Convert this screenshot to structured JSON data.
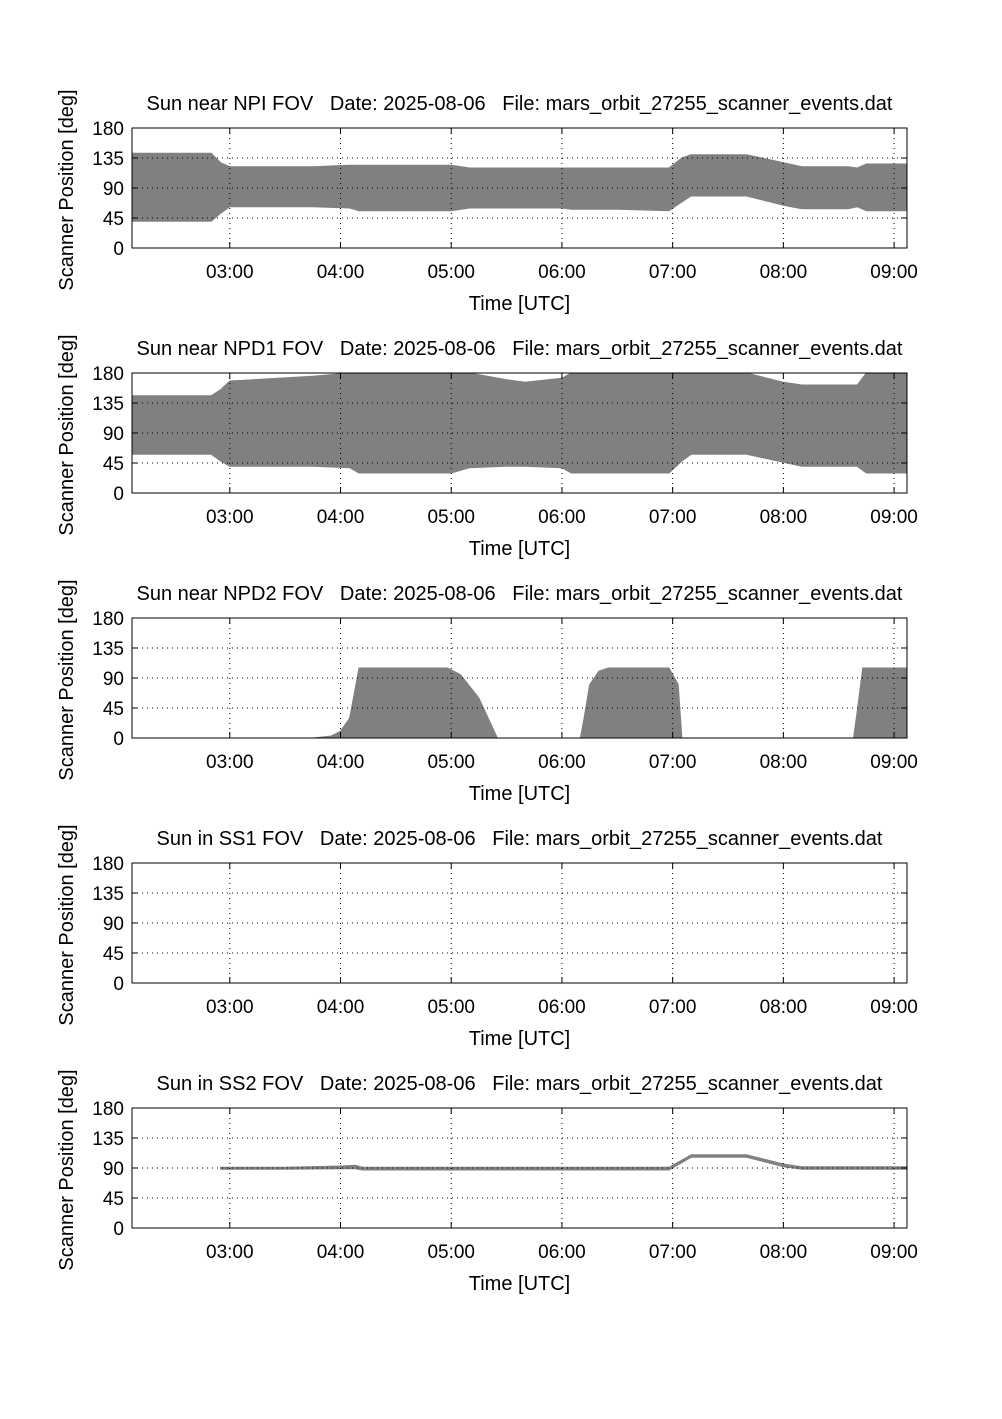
{
  "colors": {
    "fill": "#808080",
    "axes": "#000000",
    "grid": "#000000",
    "background": "#ffffff"
  },
  "chart_data": [
    {
      "type": "area",
      "title": "Sun near NPI FOV   Date: 2025-08-06   File: mars_orbit_27255_scanner_events.dat",
      "xlabel": "Time [UTC]",
      "ylabel": "Scanner Position [deg]",
      "xlim": [
        "02:07",
        "09:07"
      ],
      "ylim": [
        0,
        180
      ],
      "xticks": [
        "03:00",
        "04:00",
        "05:00",
        "06:00",
        "07:00",
        "08:00",
        "09:00"
      ],
      "yticks": [
        0,
        45,
        90,
        135,
        180
      ],
      "grid": true,
      "x": [
        "02:07",
        "02:50",
        "02:55",
        "03:00",
        "03:45",
        "04:05",
        "04:10",
        "05:00",
        "05:10",
        "06:00",
        "06:05",
        "06:30",
        "06:58",
        "07:05",
        "07:10",
        "07:40",
        "08:00",
        "08:10",
        "08:20",
        "08:35",
        "08:40",
        "08:45",
        "09:07"
      ],
      "series": [
        {
          "low": [
            40,
            40,
            52,
            62,
            62,
            60,
            56,
            56,
            60,
            60,
            58,
            58,
            56,
            69,
            78,
            78,
            64,
            59,
            59,
            59,
            62,
            56,
            56
          ],
          "high": [
            142,
            142,
            128,
            122,
            122,
            124,
            124,
            124,
            120,
            120,
            120,
            120,
            120,
            135,
            140,
            140,
            128,
            122,
            122,
            122,
            120,
            126,
            126
          ]
        }
      ]
    },
    {
      "type": "area",
      "title": "Sun near NPD1 FOV   Date: 2025-08-06   File: mars_orbit_27255_scanner_events.dat",
      "xlabel": "Time [UTC]",
      "ylabel": "Scanner Position [deg]",
      "xlim": [
        "02:07",
        "09:07"
      ],
      "ylim": [
        0,
        180
      ],
      "xticks": [
        "03:00",
        "04:00",
        "05:00",
        "06:00",
        "07:00",
        "08:00",
        "09:00"
      ],
      "yticks": [
        0,
        45,
        90,
        135,
        180
      ],
      "grid": true,
      "x": [
        "02:07",
        "02:50",
        "02:55",
        "03:00",
        "03:45",
        "04:05",
        "04:10",
        "05:00",
        "05:10",
        "05:30",
        "05:40",
        "06:00",
        "06:05",
        "06:30",
        "06:58",
        "07:05",
        "07:10",
        "07:40",
        "08:00",
        "08:10",
        "08:35",
        "08:40",
        "08:45",
        "09:07"
      ],
      "series": [
        {
          "low": [
            58,
            58,
            48,
            40,
            40,
            38,
            30,
            30,
            38,
            40,
            40,
            38,
            30,
            30,
            30,
            48,
            58,
            58,
            46,
            40,
            40,
            40,
            30,
            30
          ],
          "high": [
            146,
            146,
            155,
            168,
            175,
            180,
            180,
            180,
            180,
            170,
            166,
            172,
            180,
            180,
            180,
            180,
            180,
            180,
            166,
            162,
            162,
            162,
            180,
            180
          ]
        }
      ]
    },
    {
      "type": "area",
      "title": "Sun near NPD2 FOV   Date: 2025-08-06   File: mars_orbit_27255_scanner_events.dat",
      "xlabel": "Time [UTC]",
      "ylabel": "Scanner Position [deg]",
      "xlim": [
        "02:07",
        "09:07"
      ],
      "ylim": [
        0,
        180
      ],
      "xticks": [
        "03:00",
        "04:00",
        "05:00",
        "06:00",
        "07:00",
        "08:00",
        "09:00"
      ],
      "yticks": [
        0,
        45,
        90,
        135,
        180
      ],
      "grid": true,
      "x": [
        "02:07",
        "03:45",
        "03:55",
        "04:00",
        "04:05",
        "04:07",
        "04:10",
        "04:58",
        "05:05",
        "05:15",
        "05:20",
        "05:25",
        "06:10",
        "06:12",
        "06:15",
        "06:20",
        "06:25",
        "06:58",
        "07:03",
        "07:05",
        "08:38",
        "08:40",
        "08:43",
        "09:07"
      ],
      "series": [
        {
          "low": [
            0,
            0,
            0,
            0,
            0,
            0,
            0,
            0,
            0,
            0,
            0,
            0,
            0,
            0,
            0,
            0,
            0,
            0,
            0,
            0,
            0,
            0,
            0,
            0
          ],
          "high": [
            0,
            0,
            3,
            10,
            30,
            60,
            105,
            105,
            95,
            60,
            30,
            0,
            0,
            30,
            80,
            100,
            105,
            105,
            80,
            0,
            0,
            40,
            105,
            105
          ]
        }
      ]
    },
    {
      "type": "area",
      "title": "Sun in SS1 FOV   Date: 2025-08-06   File: mars_orbit_27255_scanner_events.dat",
      "xlabel": "Time [UTC]",
      "ylabel": "Scanner Position [deg]",
      "xlim": [
        "02:07",
        "09:07"
      ],
      "ylim": [
        0,
        180
      ],
      "xticks": [
        "03:00",
        "04:00",
        "05:00",
        "06:00",
        "07:00",
        "08:00",
        "09:00"
      ],
      "yticks": [
        0,
        45,
        90,
        135,
        180
      ],
      "grid": true,
      "x": [],
      "series": [
        {
          "low": [],
          "high": []
        }
      ]
    },
    {
      "type": "area",
      "title": "Sun in SS2 FOV   Date: 2025-08-06   File: mars_orbit_27255_scanner_events.dat",
      "xlabel": "Time [UTC]",
      "ylabel": "Scanner Position [deg]",
      "xlim": [
        "02:07",
        "09:07"
      ],
      "ylim": [
        0,
        180
      ],
      "xticks": [
        "03:00",
        "04:00",
        "05:00",
        "06:00",
        "07:00",
        "08:00",
        "09:00"
      ],
      "yticks": [
        0,
        45,
        90,
        135,
        180
      ],
      "grid": true,
      "x": [
        "02:55",
        "03:30",
        "04:00",
        "04:08",
        "04:12",
        "05:30",
        "06:58",
        "07:05",
        "07:10",
        "07:40",
        "08:00",
        "08:10",
        "08:40",
        "09:07"
      ],
      "series": [
        {
          "low": [
            88,
            88,
            89,
            89,
            87,
            87,
            87,
            98,
            106,
            106,
            92,
            88,
            88,
            88
          ],
          "high": [
            91,
            91,
            93,
            94,
            91,
            91,
            91,
            102,
            110,
            110,
            96,
            92,
            92,
            92
          ]
        }
      ]
    }
  ]
}
